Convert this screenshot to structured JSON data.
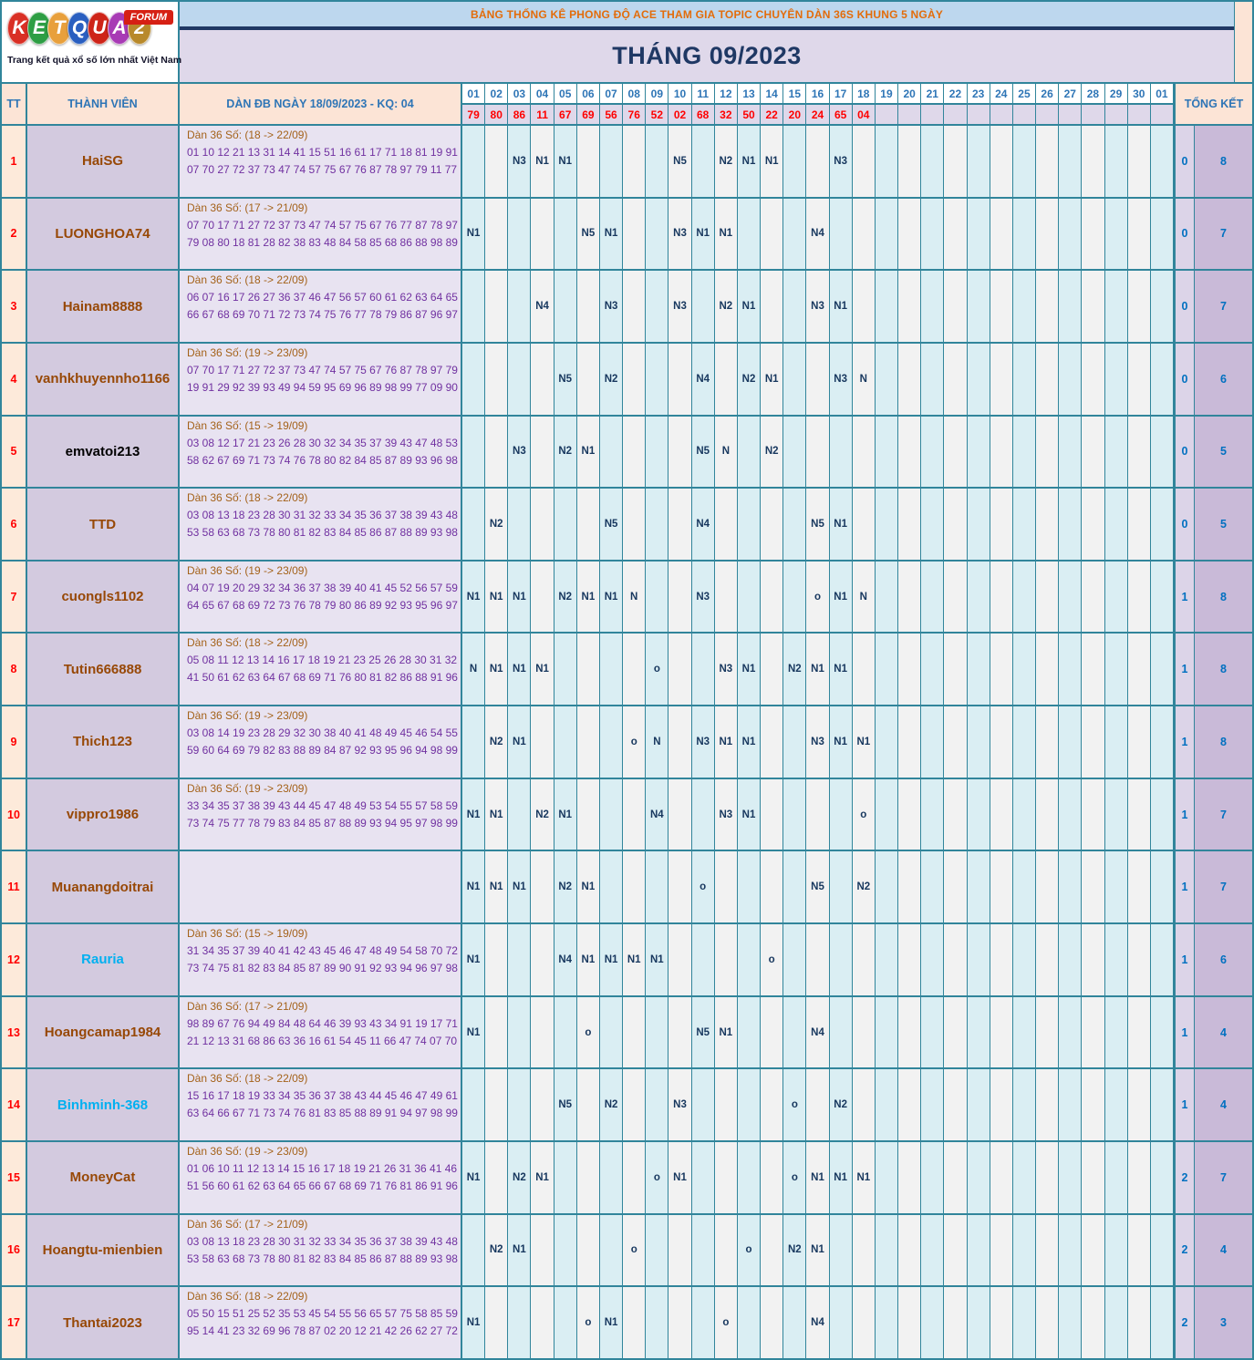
{
  "logo": {
    "letters": [
      {
        "ch": "K",
        "color": "#D93025"
      },
      {
        "ch": "E",
        "color": "#2E9E44"
      },
      {
        "ch": "T",
        "color": "#E8A03C"
      },
      {
        "ch": "Q",
        "color": "#2A5FC0"
      },
      {
        "ch": "U",
        "color": "#CE2418"
      },
      {
        "ch": "A",
        "color": "#A83BB5"
      },
      {
        "ch": "2",
        "color": "#B8892B"
      }
    ],
    "forum_badge": "FORUM",
    "tagline": "Trang kết quả xổ số lớn nhất Việt Nam"
  },
  "banner": "BẢNG THỐNG KÊ PHONG ĐỘ ACE THAM GIA TOPIC CHUYÊN DÀN 36S KHUNG 5 NGÀY",
  "month_title": "THÁNG 09/2023",
  "colors": {
    "teal_border": "#31859B",
    "banner_bg": "#BDD7EE",
    "banner_text": "#E36C0A",
    "title_bg": "#DFD8EA",
    "title_text": "#1F3864",
    "header_bg": "#FCE4D6",
    "header_text": "#2E75B6",
    "day_text": "#2E75B6",
    "result_bg": "#DFD8EA",
    "result_text": "#FF0000",
    "tt_bg": "#FDEADA",
    "tt_text": "#FF0000",
    "member_bg": "#D3CADF",
    "dan_bg": "#E8E3F1",
    "dan_title_text": "#A4621A",
    "dan_numbers_text": "#7030A0",
    "marker_odd_bg": "#DAEEF3",
    "marker_even_bg": "#F2F2F2",
    "marker_text": "#17375E",
    "totalA_bg": "#DCD4E8",
    "totalB_bg": "#C9BAD8",
    "total_text": "#0070C0",
    "name_default": "#974806",
    "name_link": "#00B0F0",
    "name_black": "#000000"
  },
  "table": {
    "headers": {
      "tt": "TT",
      "member": "THÀNH VIÊN",
      "dan": "DÀN ĐB NGÀY 18/09/2023 - KQ: 04",
      "total": "TỔNG KẾT"
    },
    "days": [
      "01",
      "02",
      "03",
      "04",
      "05",
      "06",
      "07",
      "08",
      "09",
      "10",
      "11",
      "12",
      "13",
      "14",
      "15",
      "16",
      "17",
      "18",
      "19",
      "20",
      "21",
      "22",
      "23",
      "24",
      "25",
      "26",
      "27",
      "28",
      "29",
      "30",
      "01"
    ],
    "results": [
      "79",
      "80",
      "86",
      "11",
      "67",
      "69",
      "56",
      "76",
      "52",
      "02",
      "68",
      "32",
      "50",
      "22",
      "20",
      "24",
      "65",
      "04"
    ],
    "rows": [
      {
        "tt": "1",
        "name": "HaiSG",
        "name_color": "#974806",
        "dan_title": "Dàn 36 Số: (18 -> 22/09)",
        "dan_numbers": "01 10 12 21 13 31 14 41 15 51 16 61 17 71 18 81 19 91 07 70 27 72 37 73 47 74 57 75 67 76 87 78 97 79 11 77",
        "markers": {
          "3": "N3",
          "4": "N1",
          "5": "N1",
          "10": "N5",
          "12": "N2",
          "13": "N1",
          "14": "N1",
          "17": "N3"
        },
        "totals": [
          "0",
          "8"
        ]
      },
      {
        "tt": "2",
        "name": "LUONGHOA74",
        "name_color": "#974806",
        "dan_title": "Dàn 36 Số: (17 -> 21/09)",
        "dan_numbers": "07 70 17 71 27 72 37 73 47 74 57 75 67 76 77 87 78 97 79 08 80 18 81 28 82 38 83 48 84 58 85 68 86 88 98 89",
        "markers": {
          "1": "N1",
          "6": "N5",
          "7": "N1",
          "10": "N3",
          "11": "N1",
          "12": "N1",
          "16": "N4"
        },
        "totals": [
          "0",
          "7"
        ]
      },
      {
        "tt": "3",
        "name": "Hainam8888",
        "name_color": "#974806",
        "dan_title": "Dàn 36 Số: (18 -> 22/09)",
        "dan_numbers": "06 07 16 17 26 27 36 37 46 47 56 57 60 61 62 63 64 65 66 67 68 69 70 71 72 73 74 75 76 77 78 79 86 87 96 97",
        "markers": {
          "4": "N4",
          "7": "N3",
          "10": "N3",
          "12": "N2",
          "13": "N1",
          "16": "N3",
          "17": "N1"
        },
        "totals": [
          "0",
          "7"
        ]
      },
      {
        "tt": "4",
        "name": "vanhkhuyennho1166",
        "name_color": "#974806",
        "dan_title": "Dàn 36 Số: (19 -> 23/09)",
        "dan_numbers": "07 70 17 71 27 72 37 73 47 74 57 75 67 76 87 78 97 79 19 91 29 92 39 93 49 94 59 95 69 96 89 98 99 77 09 90",
        "markers": {
          "5": "N5",
          "7": "N2",
          "11": "N4",
          "13": "N2",
          "14": "N1",
          "17": "N3",
          "18": "N"
        },
        "totals": [
          "0",
          "6"
        ]
      },
      {
        "tt": "5",
        "name": "emvatoi213",
        "name_color": "#000000",
        "dan_title": "Dàn 36 Số: (15 -> 19/09)",
        "dan_numbers": "03 08 12 17 21 23 26 28 30 32 34 35 37 39 43 47 48 53 58 62 67 69 71 73 74 76 78 80 82 84 85 87 89 93 96 98",
        "markers": {
          "3": "N3",
          "5": "N2",
          "6": "N1",
          "11": "N5",
          "12": "N",
          "14": "N2"
        },
        "totals": [
          "0",
          "5"
        ]
      },
      {
        "tt": "6",
        "name": "TTD",
        "name_color": "#974806",
        "dan_title": "Dàn 36 Số: (18 -> 22/09)",
        "dan_numbers": "03 08 13 18 23 28 30 31 32 33 34 35 36 37 38 39 43 48 53 58 63 68 73 78 80 81 82 83 84 85 86 87 88 89 93 98",
        "markers": {
          "2": "N2",
          "7": "N5",
          "11": "N4",
          "16": "N5",
          "17": "N1"
        },
        "totals": [
          "0",
          "5"
        ]
      },
      {
        "tt": "7",
        "name": "cuongls1102",
        "name_color": "#974806",
        "dan_title": "Dàn 36 Số: (19 -> 23/09)",
        "dan_numbers": "04 07 19 20 29 32 34 36 37 38 39 40 41 45 52 56 57 59 64 65 67 68 69 72 73 76 78 79 80 86 89 92 93 95 96 97",
        "markers": {
          "1": "N1",
          "2": "N1",
          "3": "N1",
          "5": "N2",
          "6": "N1",
          "7": "N1",
          "8": "N",
          "11": "N3",
          "16": "o",
          "17": "N1",
          "18": "N"
        },
        "totals": [
          "1",
          "8"
        ]
      },
      {
        "tt": "8",
        "name": "Tutin666888",
        "name_color": "#974806",
        "dan_title": "Dàn 36 Số: (18 -> 22/09)",
        "dan_numbers": "05 08 11 12 13 14 16 17 18 19 21 23 25 26 28 30 31 32 41 50 61 62 63 64 67 68 69 71 76 80 81 82 86 88 91 96",
        "markers": {
          "1": "N",
          "2": "N1",
          "3": "N1",
          "4": "N1",
          "9": "o",
          "12": "N3",
          "13": "N1",
          "15": "N2",
          "16": "N1",
          "17": "N1"
        },
        "totals": [
          "1",
          "8"
        ]
      },
      {
        "tt": "9",
        "name": "Thich123",
        "name_color": "#974806",
        "dan_title": "Dàn 36 Số: (19 -> 23/09)",
        "dan_numbers": "03 08 14 19 23 28 29 32 30 38 40 41 48 49 45 46 54 55 59 60 64 69 79 82 83 88 89 84 87 92 93 95 96 94 98 99",
        "markers": {
          "2": "N2",
          "3": "N1",
          "8": "o",
          "9": "N",
          "11": "N3",
          "12": "N1",
          "13": "N1",
          "16": "N3",
          "17": "N1",
          "18": "N1"
        },
        "totals": [
          "1",
          "8"
        ]
      },
      {
        "tt": "10",
        "name": "vippro1986",
        "name_color": "#974806",
        "dan_title": "Dàn 36 Số: (19 -> 23/09)",
        "dan_numbers": "33 34 35 37 38 39 43 44 45 47 48 49 53 54 55 57 58 59 73 74 75 77 78 79 83 84 85 87 88 89 93 94 95 97 98 99",
        "markers": {
          "1": "N1",
          "2": "N1",
          "4": "N2",
          "5": "N1",
          "9": "N4",
          "12": "N3",
          "13": "N1",
          "18": "o"
        },
        "totals": [
          "1",
          "7"
        ]
      },
      {
        "tt": "11",
        "name": "Muanangdoitrai",
        "name_color": "#974806",
        "dan_title": "",
        "dan_numbers": "",
        "markers": {
          "1": "N1",
          "2": "N1",
          "3": "N1",
          "5": "N2",
          "6": "N1",
          "11": "o",
          "16": "N5",
          "18": "N2"
        },
        "totals": [
          "1",
          "7"
        ]
      },
      {
        "tt": "12",
        "name": "Rauria",
        "name_color": "#00B0F0",
        "dan_title": "Dàn 36 Số: (15 -> 19/09)",
        "dan_numbers": "31 34 35 37 39 40 41 42 43 45 46 47 48 49 54 58 70 72 73 74 75 81 82 83 84 85 87 89 90 91 92 93 94 96 97 98",
        "markers": {
          "1": "N1",
          "5": "N4",
          "6": "N1",
          "7": "N1",
          "8": "N1",
          "9": "N1",
          "14": "o"
        },
        "totals": [
          "1",
          "6"
        ]
      },
      {
        "tt": "13",
        "name": "Hoangcamap1984",
        "name_color": "#974806",
        "dan_title": "Dàn 36 Số: (17 -> 21/09)",
        "dan_numbers": "98 89 67 76 94 49 84 48 64 46 39 93 43 34 91 19 17 71 21 12 13 31 68 86 63 36 16 61 54 45 11 66 47 74 07 70",
        "markers": {
          "1": "N1",
          "6": "o",
          "11": "N5",
          "12": "N1",
          "16": "N4"
        },
        "totals": [
          "1",
          "4"
        ]
      },
      {
        "tt": "14",
        "name": "Binhminh-368",
        "name_color": "#00B0F0",
        "dan_title": "Dàn 36 Số: (18 -> 22/09)",
        "dan_numbers": "15 16 17 18 19 33 34 35 36 37 38 43 44 45 46 47 49 61 63 64 66 67 71 73 74 76 81 83 85 88 89 91 94 97 98 99",
        "markers": {
          "5": "N5",
          "7": "N2",
          "10": "N3",
          "15": "o",
          "17": "N2"
        },
        "totals": [
          "1",
          "4"
        ]
      },
      {
        "tt": "15",
        "name": "MoneyCat",
        "name_color": "#974806",
        "dan_title": "Dàn 36 Số: (19 -> 23/09)",
        "dan_numbers": "01 06 10 11 12 13 14 15 16 17 18 19 21 26 31 36 41 46 51 56 60 61 62 63 64 65 66 67 68 69 71 76 81 86 91 96",
        "markers": {
          "1": "N1",
          "3": "N2",
          "4": "N1",
          "9": "o",
          "10": "N1",
          "15": "o",
          "16": "N1",
          "17": "N1",
          "18": "N1"
        },
        "totals": [
          "2",
          "7"
        ]
      },
      {
        "tt": "16",
        "name": "Hoangtu-mienbien",
        "name_color": "#974806",
        "dan_title": "Dàn 36 Số: (17 -> 21/09)",
        "dan_numbers": "03 08 13 18 23 28 30 31 32 33 34 35 36 37 38 39 43 48 53 58 63 68 73 78 80 81 82 83 84 85 86 87 88 89 93 98",
        "markers": {
          "2": "N2",
          "3": "N1",
          "8": "o",
          "13": "o",
          "15": "N2",
          "16": "N1"
        },
        "totals": [
          "2",
          "4"
        ]
      },
      {
        "tt": "17",
        "name": "Thantai2023",
        "name_color": "#974806",
        "dan_title": "Dàn 36 Số: (18 -> 22/09)",
        "dan_numbers": "05 50 15 51 25 52 35 53 45 54 55 56 65 57 75 58 85 59 95 14 41 23 32 69 96 78 87 02 20 12 21 42 26 62 27 72",
        "markers": {
          "1": "N1",
          "6": "o",
          "7": "N1",
          "12": "o",
          "16": "N4"
        },
        "totals": [
          "2",
          "3"
        ]
      }
    ]
  }
}
